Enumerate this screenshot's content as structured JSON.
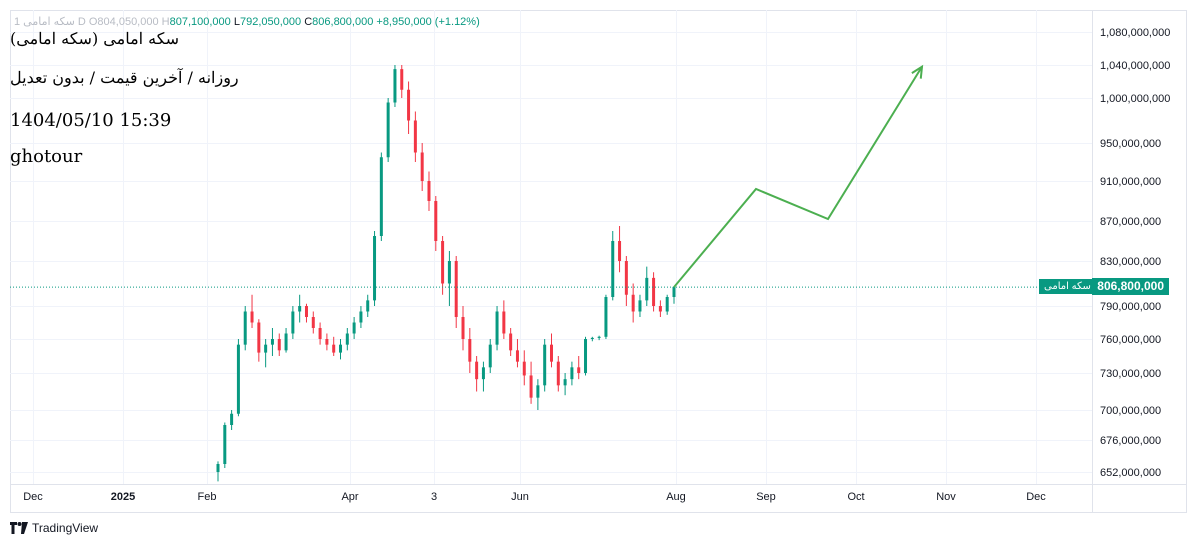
{
  "header": {
    "ohlc_prefix": "سکه امامی 1 D",
    "open_label": "O",
    "open": "804,050,000",
    "high_label": "H",
    "high": "807,100,000",
    "low_label": "L",
    "low": "792,050,000",
    "close_label": "C",
    "close": "806,800,000",
    "change": "+8,950,000 (+1.12%)"
  },
  "watermark": {
    "line1": "(سکه امامی (سکه امامی",
    "line2": "روزانه / آخرین قیمت / بدون تعدیل",
    "line3": "1404/05/10 15:39",
    "line4": "ghotour"
  },
  "price_axis": {
    "current_price_label": "806,800,000",
    "symbol_label": "سکه امامی"
  },
  "footer": {
    "brand": "TradingView"
  },
  "colors": {
    "up": "#089981",
    "down": "#f23645",
    "projection": "#4caf50",
    "grid": "#f0f3fa",
    "axis_text": "#131722"
  },
  "chart_data": {
    "type": "candlestick",
    "x_ticks": [
      "Dec",
      "2025",
      "Feb",
      "Apr",
      "3",
      "Jun",
      "Aug",
      "Sep",
      "Oct",
      "Nov",
      "Dec"
    ],
    "y_ticks": [
      "1,080,000,000",
      "1,040,000,000",
      "1,000,000,000",
      "950,000,000",
      "910,000,000",
      "870,000,000",
      "830,000,000",
      "790,000,000",
      "760,000,000",
      "730,000,000",
      "700,000,000",
      "676,000,000",
      "652,000,000"
    ],
    "y_tick_values": [
      1080000000,
      1040000000,
      1000000000,
      950000000,
      910000000,
      870000000,
      830000000,
      790000000,
      760000000,
      730000000,
      700000000,
      676000000,
      652000000
    ],
    "current_price": 806800000,
    "candles_approx": [
      [
        652,
        660,
        645,
        658
      ],
      [
        658,
        690,
        655,
        688
      ],
      [
        688,
        700,
        684,
        697
      ],
      [
        697,
        760,
        695,
        755
      ],
      [
        755,
        790,
        750,
        785
      ],
      [
        785,
        800,
        770,
        775
      ],
      [
        775,
        778,
        740,
        748
      ],
      [
        748,
        760,
        735,
        755
      ],
      [
        755,
        770,
        745,
        760
      ],
      [
        760,
        765,
        745,
        750
      ],
      [
        750,
        770,
        748,
        765
      ],
      [
        765,
        790,
        760,
        785
      ],
      [
        785,
        800,
        775,
        790
      ],
      [
        790,
        792,
        775,
        780
      ],
      [
        780,
        785,
        765,
        770
      ],
      [
        770,
        775,
        755,
        760
      ],
      [
        760,
        765,
        750,
        755
      ],
      [
        755,
        762,
        745,
        748
      ],
      [
        748,
        760,
        742,
        755
      ],
      [
        755,
        770,
        750,
        765
      ],
      [
        765,
        780,
        760,
        775
      ],
      [
        775,
        790,
        770,
        785
      ],
      [
        785,
        800,
        780,
        795
      ],
      [
        795,
        860,
        790,
        855
      ],
      [
        855,
        940,
        850,
        935
      ],
      [
        935,
        1000,
        930,
        995
      ],
      [
        995,
        1040,
        990,
        1035
      ],
      [
        1035,
        1040,
        1000,
        1010
      ],
      [
        1010,
        1020,
        960,
        975
      ],
      [
        975,
        985,
        930,
        940
      ],
      [
        940,
        950,
        900,
        910
      ],
      [
        910,
        920,
        880,
        890
      ],
      [
        890,
        895,
        840,
        850
      ],
      [
        850,
        855,
        800,
        810
      ],
      [
        810,
        840,
        790,
        830
      ],
      [
        830,
        835,
        770,
        780
      ],
      [
        780,
        790,
        750,
        760
      ],
      [
        760,
        770,
        730,
        740
      ],
      [
        740,
        745,
        715,
        725
      ],
      [
        725,
        740,
        715,
        735
      ],
      [
        735,
        760,
        730,
        755
      ],
      [
        755,
        790,
        750,
        785
      ],
      [
        785,
        795,
        760,
        765
      ],
      [
        765,
        770,
        745,
        750
      ],
      [
        750,
        760,
        735,
        740
      ],
      [
        740,
        750,
        720,
        728
      ],
      [
        728,
        740,
        705,
        710
      ],
      [
        710,
        725,
        700,
        720
      ],
      [
        720,
        760,
        715,
        755
      ],
      [
        755,
        765,
        735,
        740
      ],
      [
        740,
        745,
        715,
        720
      ],
      [
        720,
        730,
        712,
        725
      ],
      [
        725,
        740,
        720,
        735
      ],
      [
        735,
        745,
        725,
        730
      ],
      [
        730,
        762,
        728,
        760
      ],
      [
        760,
        762,
        758,
        761
      ],
      [
        761,
        763,
        759,
        762
      ],
      [
        762,
        800,
        760,
        798
      ],
      [
        798,
        860,
        795,
        850
      ],
      [
        850,
        865,
        820,
        830
      ],
      [
        830,
        835,
        790,
        800
      ],
      [
        800,
        810,
        775,
        785
      ],
      [
        785,
        800,
        780,
        795
      ],
      [
        795,
        825,
        790,
        815
      ],
      [
        815,
        820,
        785,
        790
      ],
      [
        790,
        795,
        780,
        785
      ],
      [
        785,
        800,
        782,
        798
      ],
      [
        798,
        807,
        792,
        807
      ]
    ],
    "projection_path": [
      [
        806800000,
        "Aug"
      ],
      [
        902000000,
        "Sep"
      ],
      [
        872000000,
        "Oct"
      ],
      [
        1038000000,
        "Nov"
      ]
    ]
  }
}
